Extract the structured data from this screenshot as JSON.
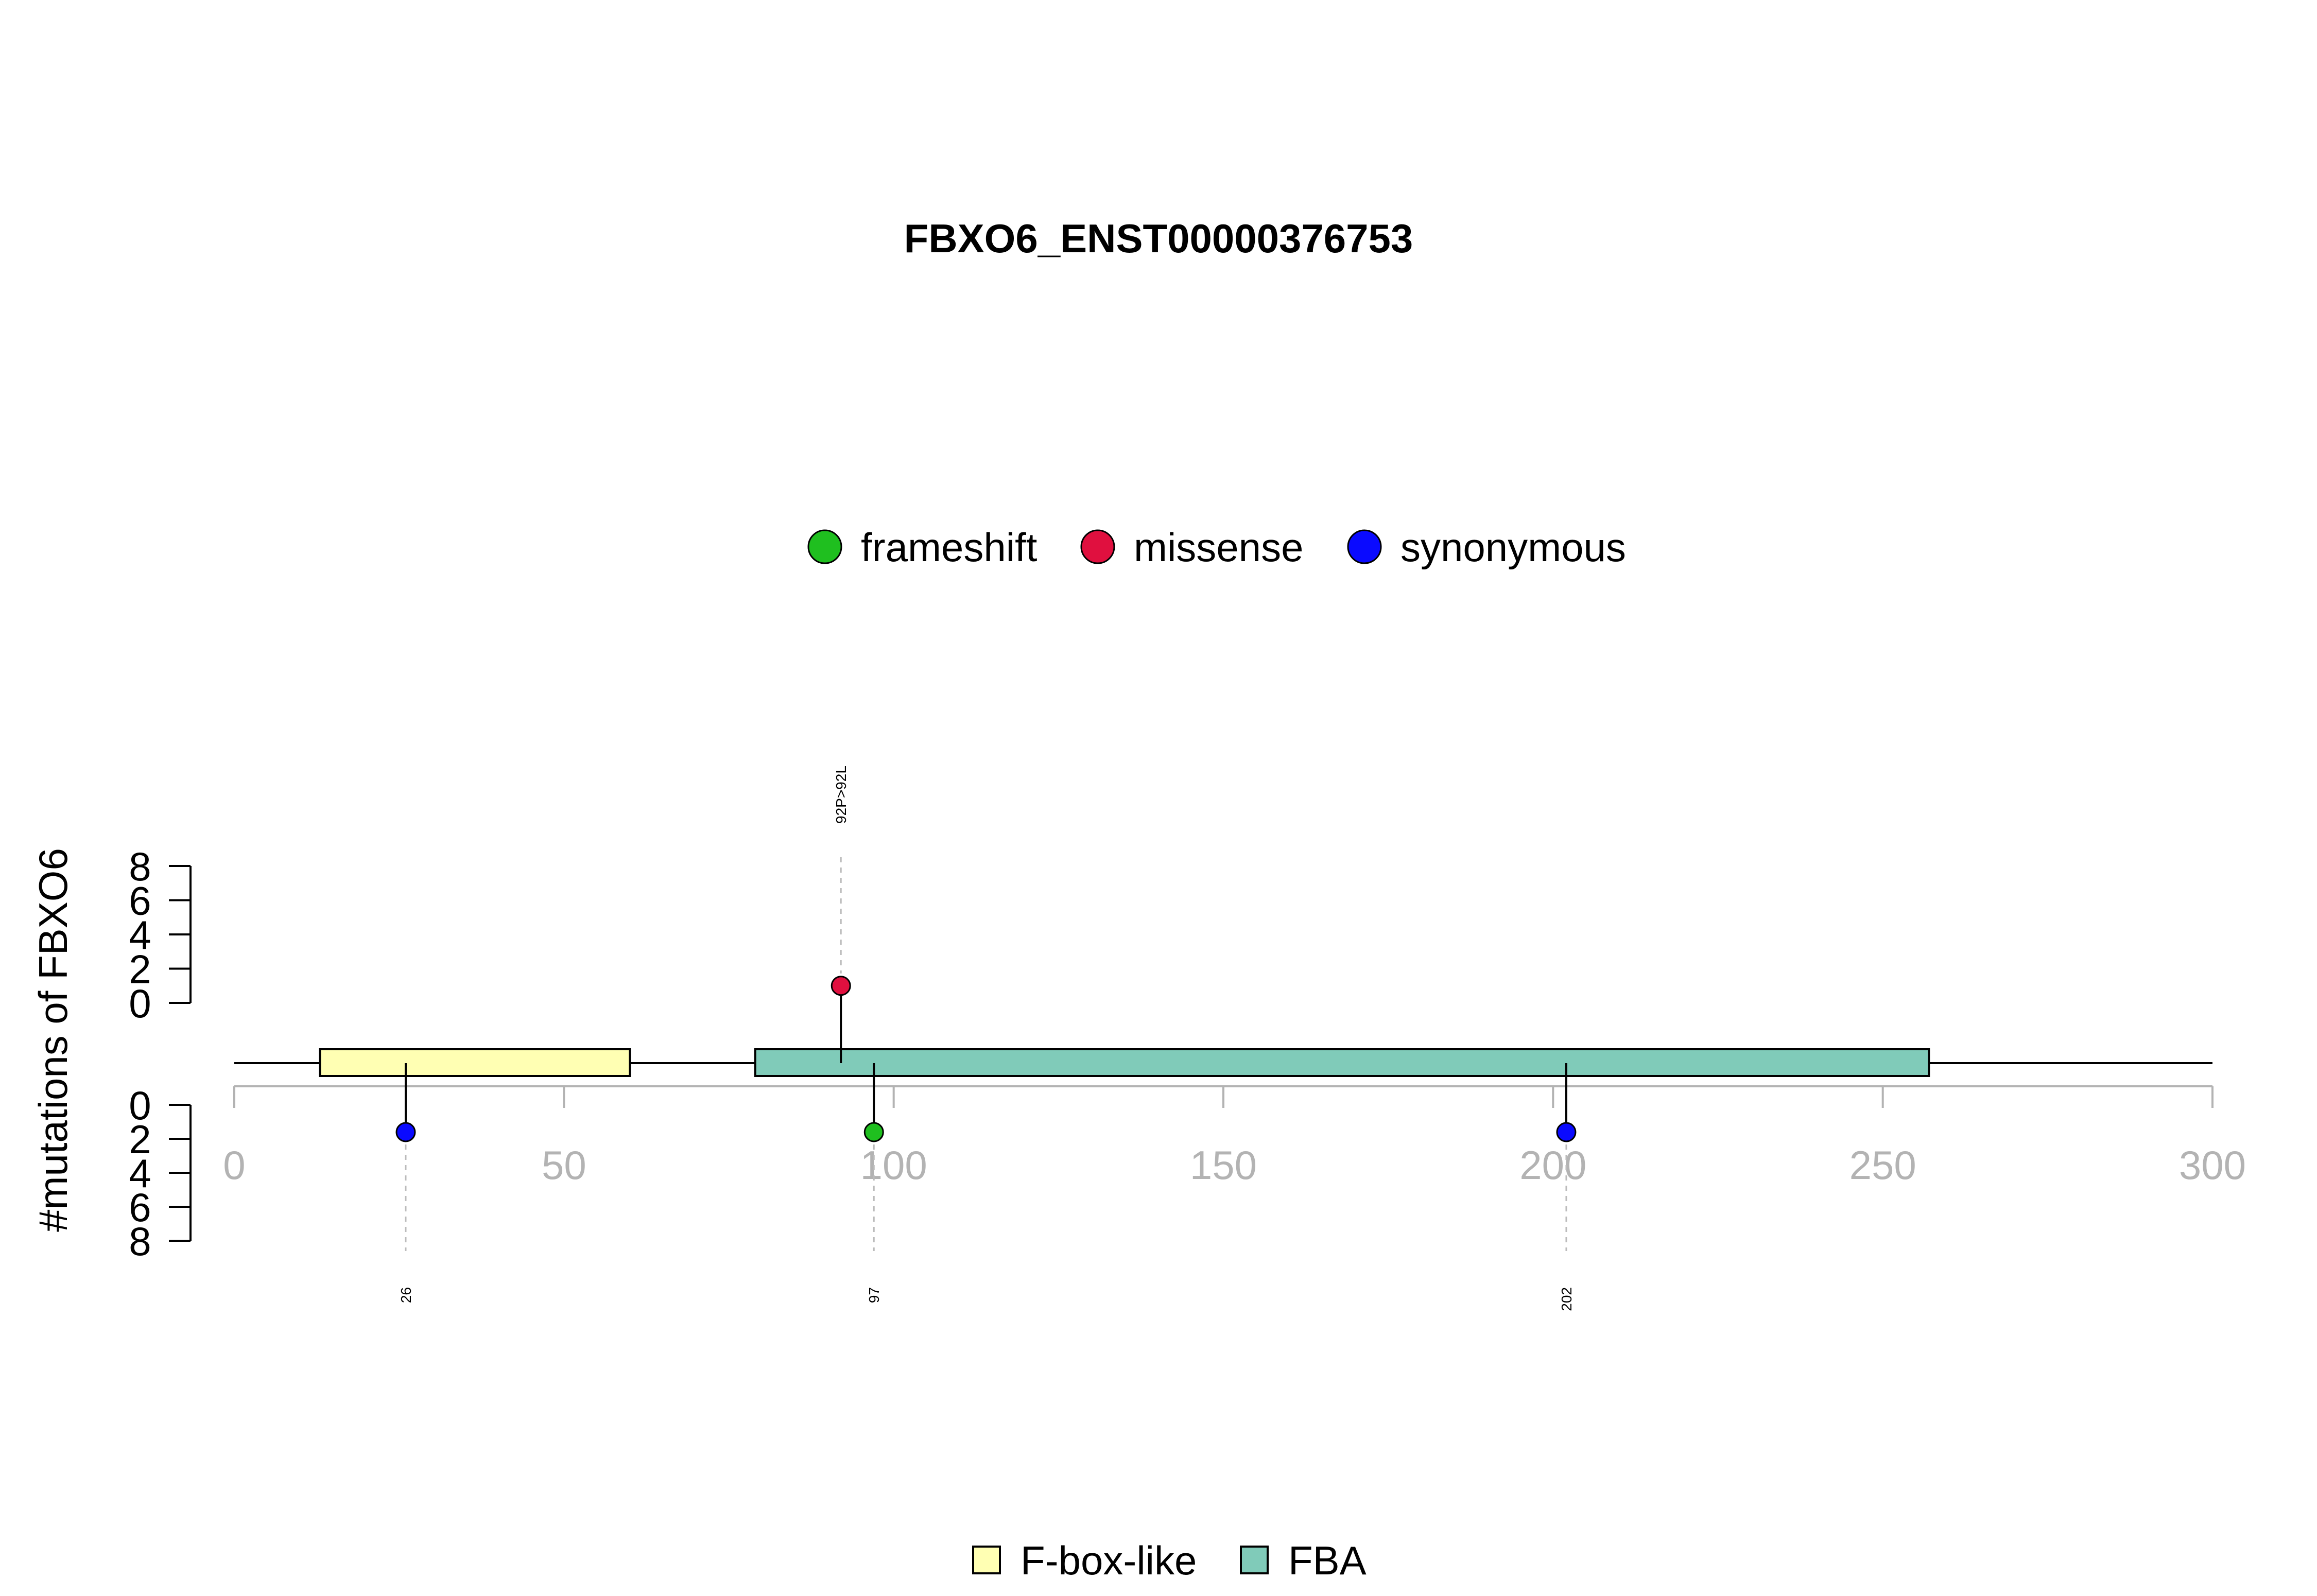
{
  "chart_data": {
    "type": "lollipop",
    "title": "FBXO6_ENST00000376753",
    "ylabel": "#mutations of FBXO6",
    "x_axis": {
      "range": [
        0,
        300
      ],
      "ticks": [
        "0",
        "50",
        "100",
        "150",
        "200",
        "250",
        "300"
      ]
    },
    "y_axis": {
      "range": [
        0,
        8
      ],
      "ticks": [
        "0",
        "2",
        "4",
        "6",
        "8"
      ],
      "mirrored": true
    },
    "protein_length": 300,
    "mutation_legend": [
      {
        "name": "frameshift",
        "color": "#1fbf1f"
      },
      {
        "name": "missense",
        "color": "#e0103f"
      },
      {
        "name": "synonymous",
        "color": "#0a0aff"
      }
    ],
    "domain_legend": [
      {
        "name": "F-box-like",
        "color": "#ffffb3"
      },
      {
        "name": "FBA",
        "color": "#80cbb9"
      }
    ],
    "domains": [
      {
        "name": "F-box-like",
        "start": 13,
        "end": 60,
        "color": "#ffffb3"
      },
      {
        "name": "FBA",
        "start": 79,
        "end": 257,
        "color": "#80cbb9"
      }
    ],
    "mutations": [
      {
        "position": 92,
        "label": "92P>92L",
        "type": "missense",
        "count": 1,
        "side": "top"
      },
      {
        "position": 26,
        "label": "26",
        "type": "synonymous",
        "count": 1,
        "side": "bottom"
      },
      {
        "position": 97,
        "label": "97",
        "type": "frameshift",
        "count": 1,
        "side": "bottom"
      },
      {
        "position": 202,
        "label": "202",
        "type": "synonymous",
        "count": 1,
        "side": "bottom"
      }
    ]
  }
}
